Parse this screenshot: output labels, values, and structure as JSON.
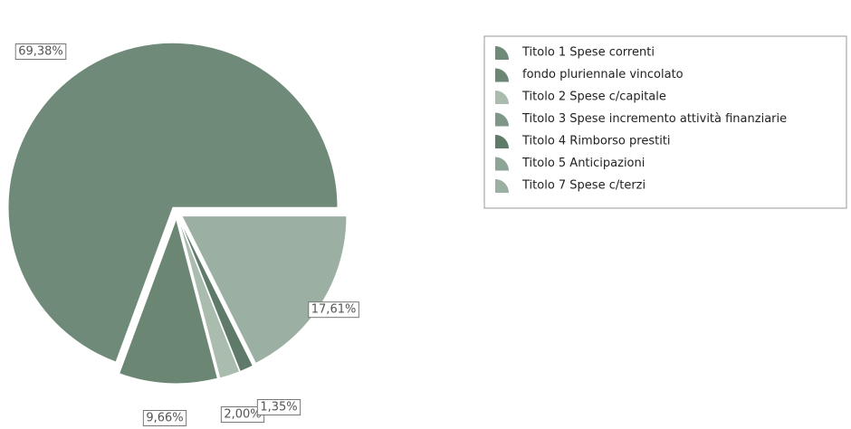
{
  "chart_data": {
    "type": "pie",
    "categories": [
      "Titolo 1 Spese correnti",
      "fondo pluriennale vincolato",
      "Titolo 2 Spese c/capitale",
      "Titolo 3 Spese incremento attività finanziarie",
      "Titolo 4 Rimborso prestiti",
      "Titolo 5 Anticipazioni",
      "Titolo 7 Spese c/terzi"
    ],
    "values": [
      69.38,
      9.66,
      2.0,
      0,
      1.35,
      0,
      17.61
    ],
    "value_labels": [
      "69,38%",
      "9,66%",
      "2,00%",
      null,
      "1,35%",
      null,
      "17,61%"
    ],
    "colors": [
      "#6f8a78",
      "#6b8672",
      "#a9bcae",
      "#7f9788",
      "#5f7a68",
      "#8ea497",
      "#9bb0a2"
    ],
    "legend": "top-right"
  }
}
